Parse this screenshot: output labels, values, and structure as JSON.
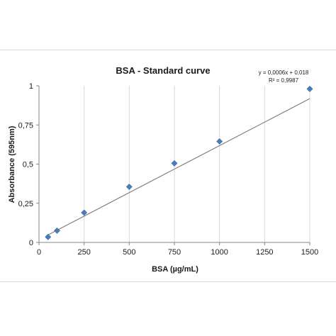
{
  "chart_data": {
    "type": "scatter",
    "title": "BSA - Standard curve",
    "xlabel": "BSA (µg/mL)",
    "ylabel": "Absorbance (595nm)",
    "xlim": [
      0,
      1500
    ],
    "ylim": [
      0,
      1
    ],
    "x_ticks": [
      0,
      250,
      500,
      750,
      1000,
      1250,
      1500
    ],
    "x_tick_labels": [
      "0",
      "250",
      "500",
      "750",
      "1000",
      "1250",
      "1500"
    ],
    "y_ticks": [
      0,
      0.25,
      0.5,
      0.75,
      1
    ],
    "y_tick_labels": [
      "0",
      "0,25",
      "0,5",
      "0,75",
      "1"
    ],
    "grid": "vertical",
    "marker_color": "#4a7ebb",
    "trendline_color": "#808080",
    "series": [
      {
        "x": [
          50,
          100,
          250,
          500,
          750,
          1000,
          1500
        ],
        "y": [
          0.035,
          0.075,
          0.19,
          0.355,
          0.505,
          0.645,
          0.98
        ]
      }
    ],
    "trendline": {
      "slope": 0.0006,
      "intercept": 0.018,
      "x_range": [
        50,
        1500
      ]
    },
    "annotations": {
      "equation": "y = 0,0006x + 0,018",
      "r_squared": "R² = 0,9987"
    }
  }
}
